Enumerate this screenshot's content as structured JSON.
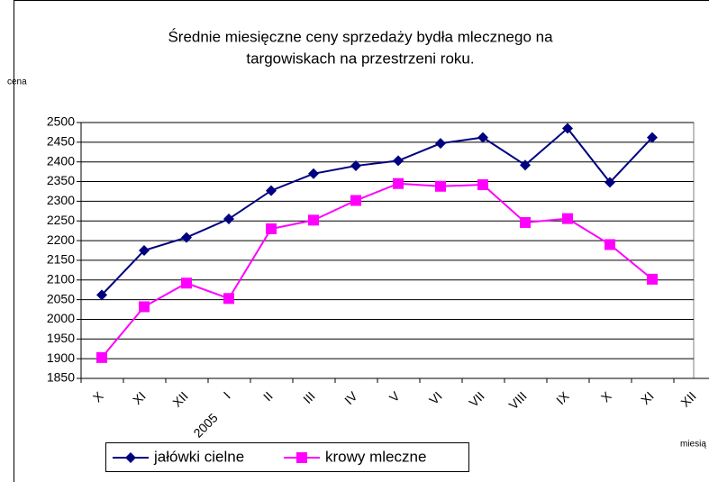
{
  "chart_data": {
    "type": "line",
    "title": [
      "Średnie miesięczne ceny sprzedaży bydła mlecznego na",
      "targowiskach na przestrzeni roku."
    ],
    "y_label": "cena",
    "x_label": "miesią",
    "annotation": "2005",
    "categories": [
      "X",
      "XI",
      "XII",
      "I",
      "II",
      "III",
      "IV",
      "V",
      "VI",
      "VII",
      "VIII",
      "IX",
      "X",
      "XI",
      "XII"
    ],
    "series": [
      {
        "name": "jałówki cielne",
        "color": "#000080",
        "marker": "diamond",
        "values": [
          2062,
          2175,
          2208,
          2255,
          2327,
          2370,
          2390,
          2403,
          2447,
          2462,
          2392,
          2485,
          2348,
          2462,
          null
        ]
      },
      {
        "name": "krowy mleczne",
        "color": "#ff00ff",
        "marker": "square",
        "values": [
          1903,
          2032,
          2092,
          2053,
          2230,
          2252,
          2302,
          2345,
          2338,
          2342,
          2246,
          2256,
          2190,
          2102,
          null
        ]
      }
    ],
    "ylim": [
      1850,
      2500
    ],
    "yticks": [
      1850,
      1900,
      1950,
      2000,
      2050,
      2100,
      2150,
      2200,
      2250,
      2300,
      2350,
      2400,
      2450,
      2500
    ],
    "grid": true
  }
}
